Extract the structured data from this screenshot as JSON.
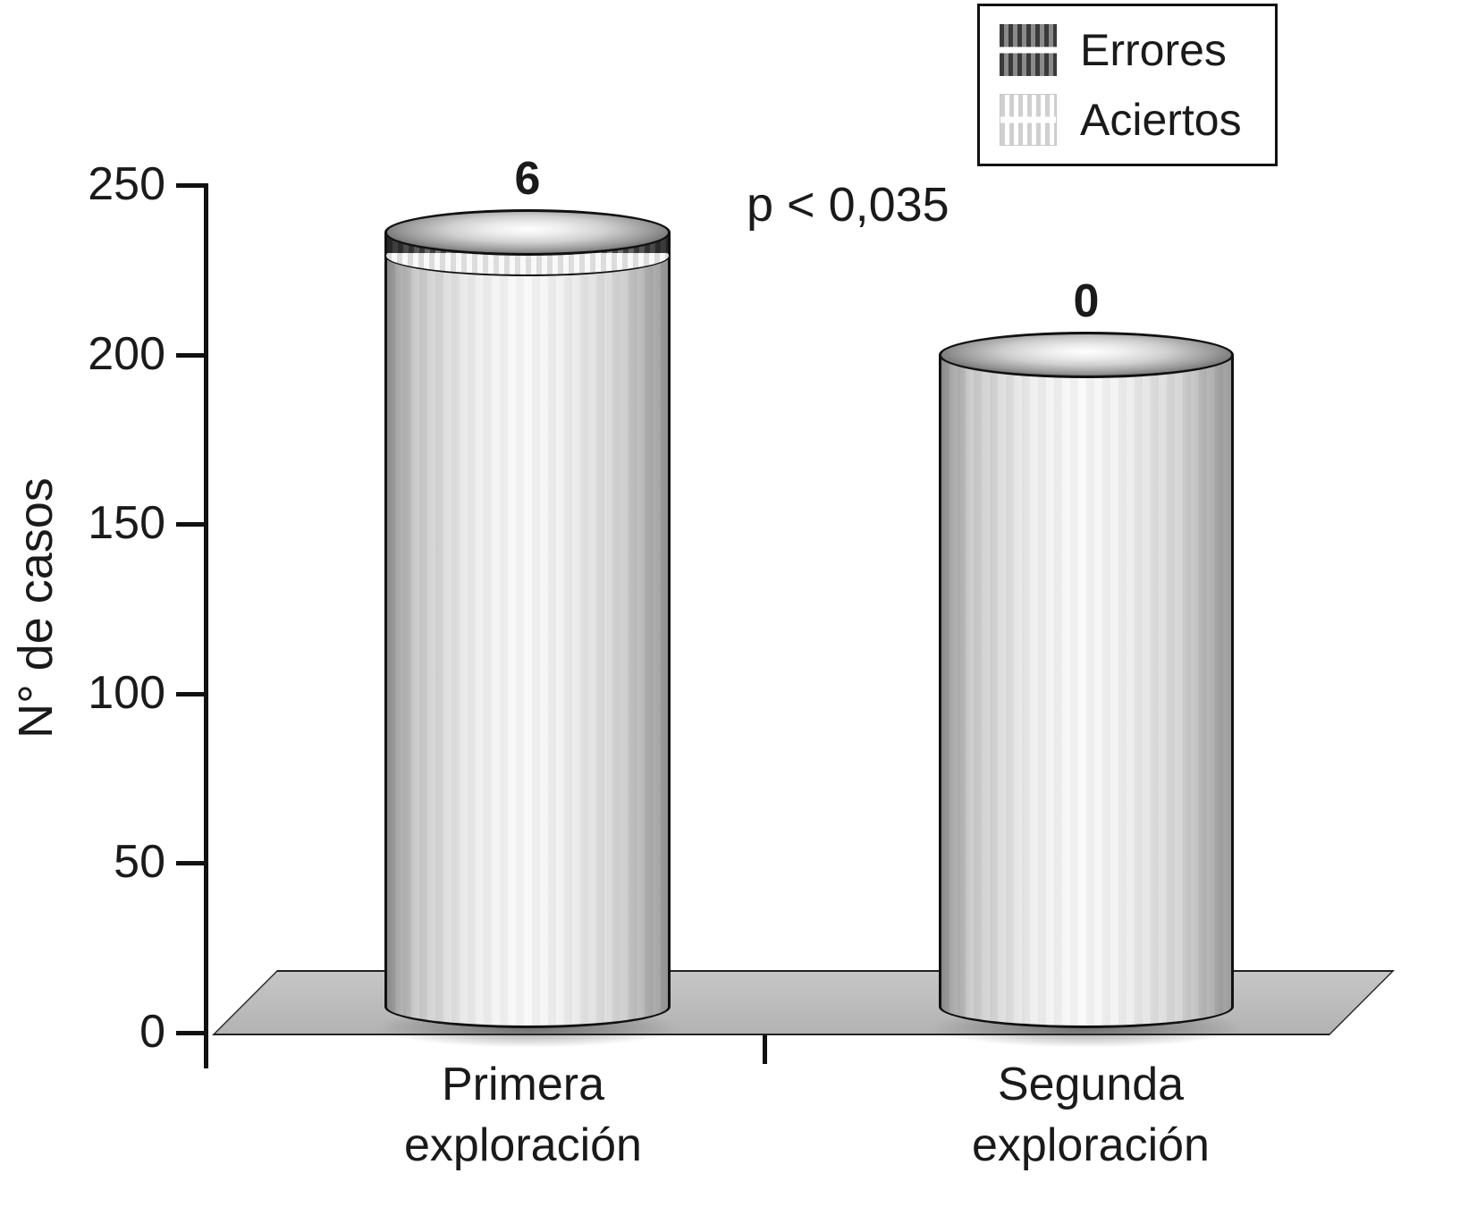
{
  "chart_data": {
    "type": "bar",
    "variant": "3d-cylinder-stacked",
    "title": "",
    "ylabel": "N° de casos",
    "ylim": [
      0,
      250
    ],
    "yticks": [
      0,
      50,
      100,
      150,
      200,
      250
    ],
    "categories": [
      "Primera exploración",
      "Segunda exploración"
    ],
    "series": [
      {
        "name": "Aciertos",
        "values": [
          230,
          200
        ]
      },
      {
        "name": "Errores",
        "values": [
          6,
          0
        ]
      }
    ],
    "bar_top_labels": [
      "6",
      "0"
    ],
    "annotation": "p < 0,035",
    "legend": [
      {
        "label": "Errores",
        "swatch": "dark-vertical-stripes"
      },
      {
        "label": "Aciertos",
        "swatch": "light-vertical-stripes"
      }
    ],
    "legend_position": "top-right",
    "grid": false,
    "colors": {
      "bar_body": "#f0f0f0",
      "errores_segment": "#5a5a5a",
      "floor": "#bdbdbd",
      "text": "#1a1a1a",
      "background": "#ffffff"
    }
  }
}
